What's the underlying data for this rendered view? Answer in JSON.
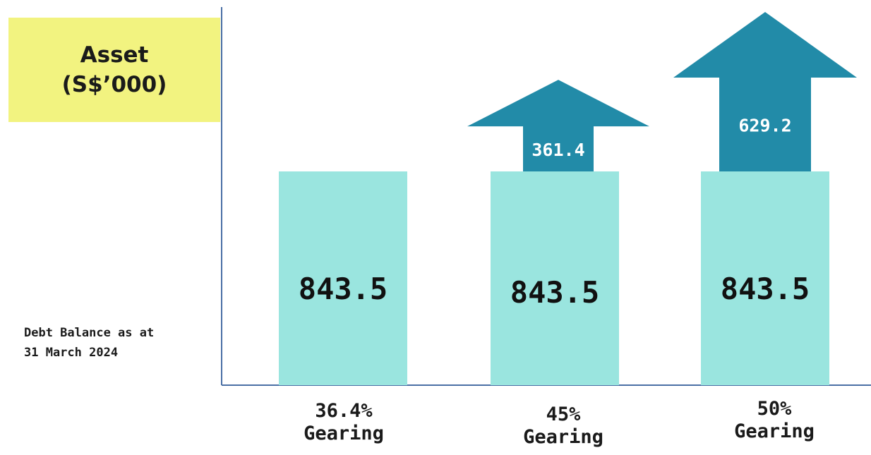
{
  "chart_data": {
    "type": "bar",
    "ylabel": [
      "Asset",
      "(S$’000)"
    ],
    "annotation": [
      "Debt Balance as at",
      "31 March 2024"
    ],
    "categories": [
      [
        "36.4%",
        "Gearing"
      ],
      [
        "45%",
        "Gearing"
      ],
      [
        "50%",
        "Gearing"
      ]
    ],
    "series": [
      {
        "values": [
          843.5,
          843.5,
          843.5
        ]
      },
      {
        "values": [
          null,
          361.4,
          629.2
        ]
      }
    ],
    "bar_labels": [
      "843.5",
      "843.5",
      "843.5"
    ],
    "arrow_labels": [
      "",
      "361.4",
      "629.2"
    ],
    "colors": {
      "bar": "#9ae5df",
      "arrow": "#228ba8",
      "axis": "#4a6fa5",
      "label_box": "#f2f380"
    }
  }
}
